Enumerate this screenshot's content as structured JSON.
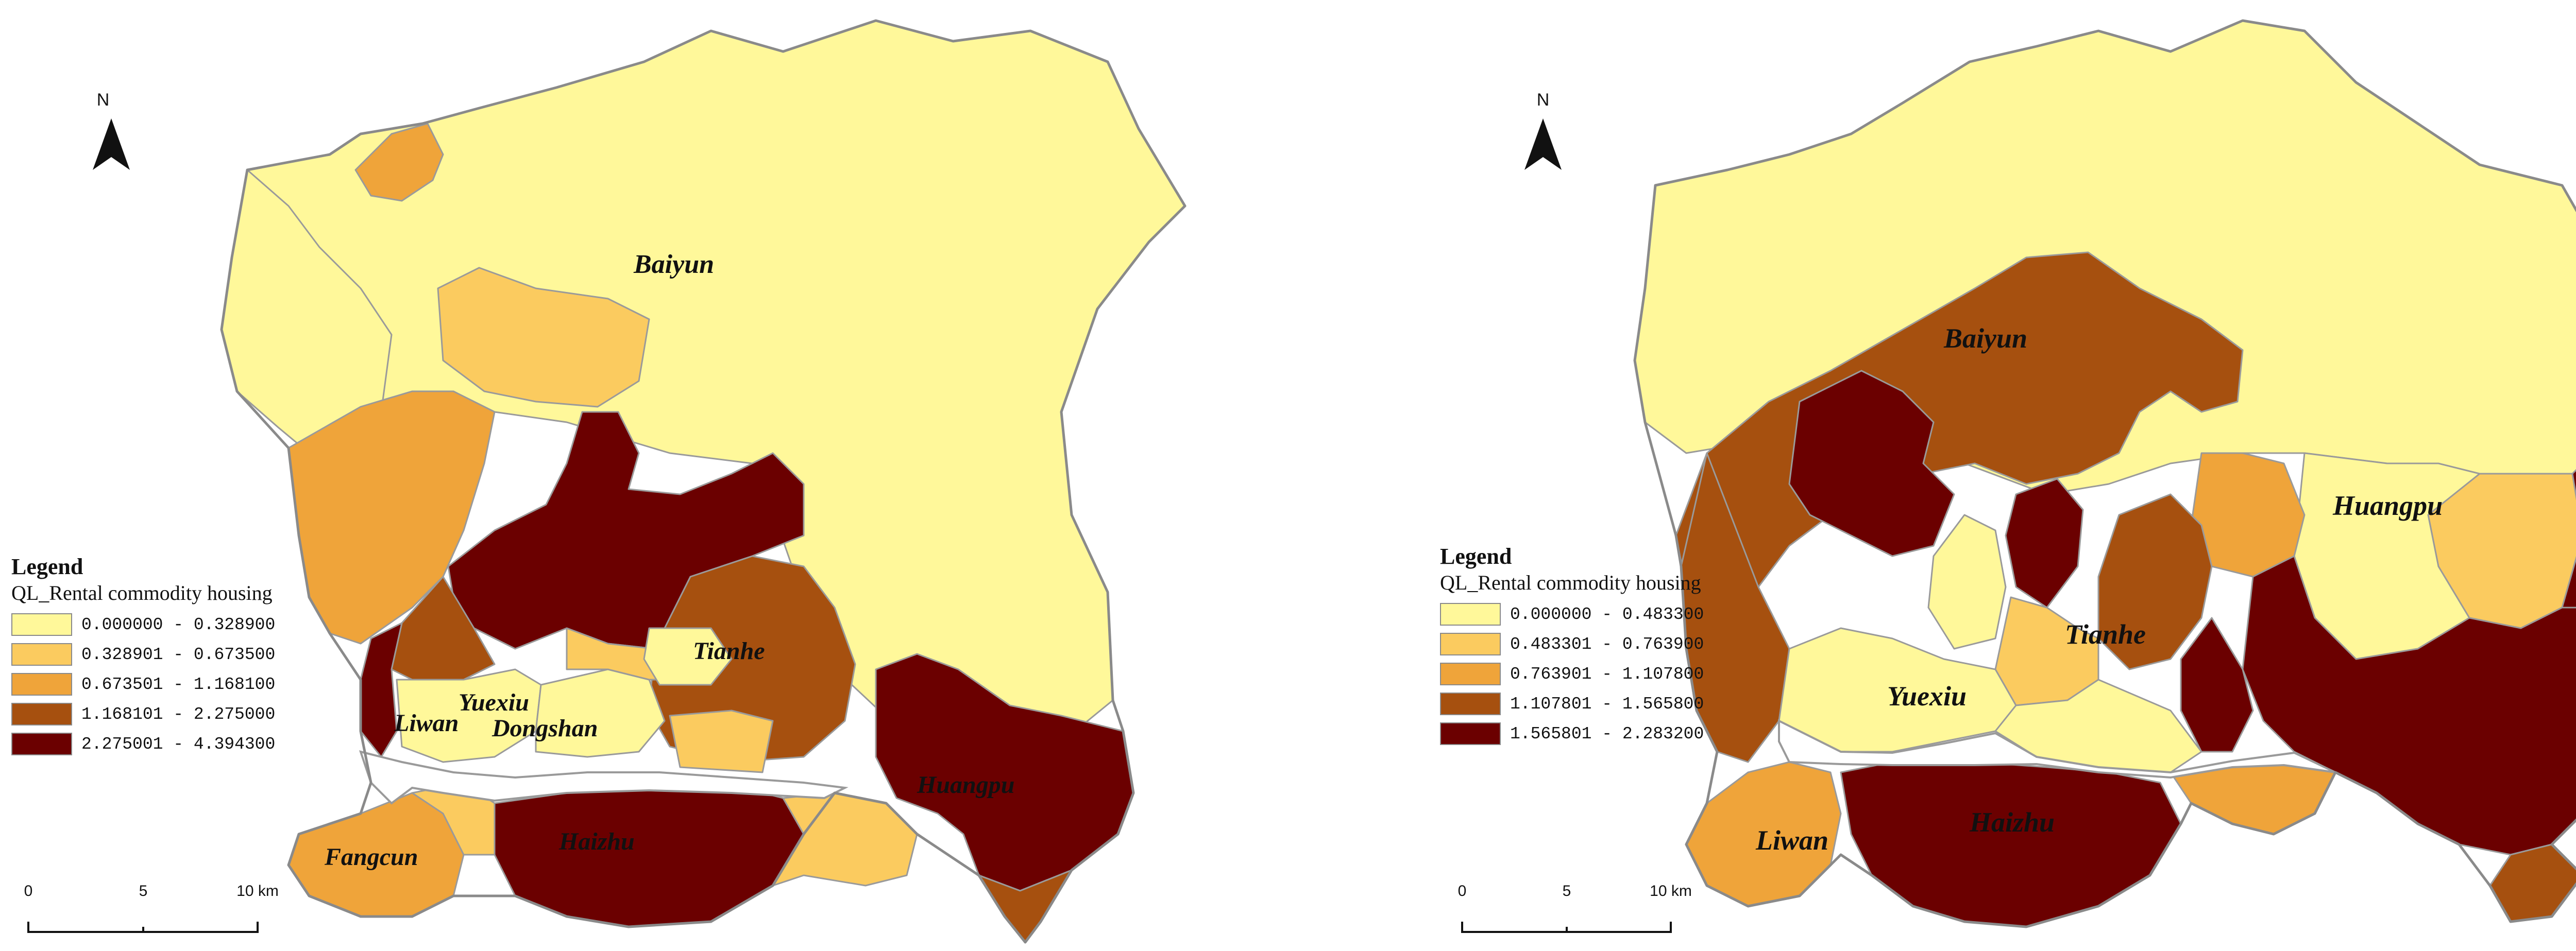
{
  "left_map": {
    "north_label": "N",
    "legend": {
      "title": "Legend",
      "field": "QL_Rental commodity housing",
      "classes": [
        {
          "range": "0.000000 - 0.328900",
          "color": "#FFF89A"
        },
        {
          "range": "0.328901 - 0.673500",
          "color": "#FBCB5F"
        },
        {
          "range": "0.673501 - 1.168100",
          "color": "#EFA43A"
        },
        {
          "range": "1.168101 - 2.275000",
          "color": "#A6500F"
        },
        {
          "range": "2.275001 - 4.394300",
          "color": "#6B0000"
        }
      ]
    },
    "scale": {
      "labels": [
        "0",
        "5",
        "10 km"
      ]
    },
    "districts": {
      "baiyun": "Baiyun",
      "tianhe": "Tianhe",
      "yuexiu": "Yuexiu",
      "liwan": "Liwan",
      "dongshan": "Dongshan",
      "huangpu": "Huangpu",
      "haizhu": "Haizhu",
      "fangcun": "Fangcun"
    }
  },
  "right_map": {
    "north_label": "N",
    "legend": {
      "title": "Legend",
      "field": "QL_Rental commodity housing",
      "classes": [
        {
          "range": "0.000000 - 0.483300",
          "color": "#FFF89A"
        },
        {
          "range": "0.483301 - 0.763900",
          "color": "#FBCB5F"
        },
        {
          "range": "0.763901 - 1.107800",
          "color": "#EFA43A"
        },
        {
          "range": "1.107801 - 1.565800",
          "color": "#A6500F"
        },
        {
          "range": "1.565801 - 2.283200",
          "color": "#6B0000"
        }
      ]
    },
    "scale": {
      "labels": [
        "0",
        "5",
        "10 km"
      ]
    },
    "districts": {
      "baiyun": "Baiyun",
      "huangpu": "Huangpu",
      "tianhe": "Tianhe",
      "yuexiu": "Yuexiu",
      "liwan": "Liwan",
      "haizhu": "Haizhu"
    }
  }
}
